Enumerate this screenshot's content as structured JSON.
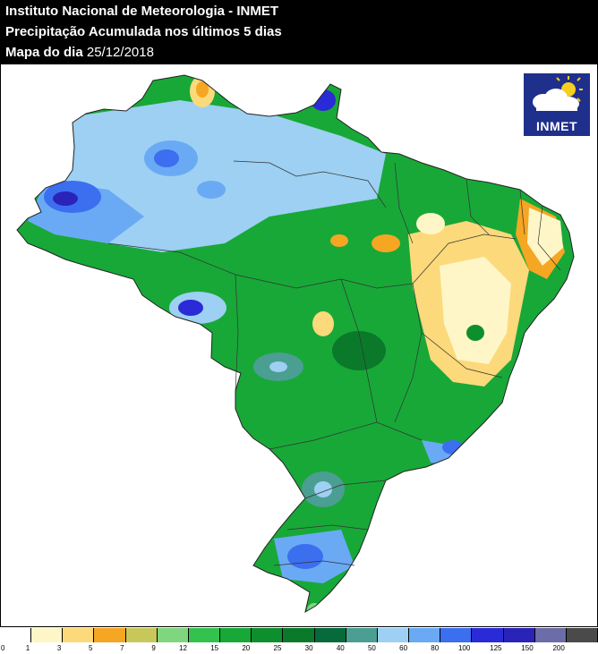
{
  "header": {
    "line1": "Instituto Nacional de Meteorologia - INMET",
    "line2": "Precipitação Acumulada nos últimos 5 dias",
    "line3_prefix": "Mapa do dia",
    "line3_date": "25/12/2018"
  },
  "logo": {
    "text": "INMET",
    "icon": "sun-cloud-icon"
  },
  "legend": {
    "zero_label": "0",
    "classes": [
      {
        "label": "1",
        "color": "#ffffff"
      },
      {
        "label": "3",
        "color": "#fff6c8"
      },
      {
        "label": "5",
        "color": "#fcd97b"
      },
      {
        "label": "7",
        "color": "#f5a623"
      },
      {
        "label": "9",
        "color": "#c8c85a"
      },
      {
        "label": "12",
        "color": "#7fd67f"
      },
      {
        "label": "15",
        "color": "#33c24d"
      },
      {
        "label": "20",
        "color": "#18a838"
      },
      {
        "label": "25",
        "color": "#0e8f2d"
      },
      {
        "label": "30",
        "color": "#0a7a2a"
      },
      {
        "label": "40",
        "color": "#066a3a"
      },
      {
        "label": "50",
        "color": "#4b9e92"
      },
      {
        "label": "60",
        "color": "#9dd0f2"
      },
      {
        "label": "80",
        "color": "#6aaaf5"
      },
      {
        "label": "100",
        "color": "#3c6ef0"
      },
      {
        "label": "125",
        "color": "#2a2ad6"
      },
      {
        "label": "150",
        "color": "#2a23b8"
      },
      {
        "label": "200",
        "color": "#6c6ca8"
      },
      {
        "label": "",
        "color": "#4a4a4a"
      }
    ]
  }
}
